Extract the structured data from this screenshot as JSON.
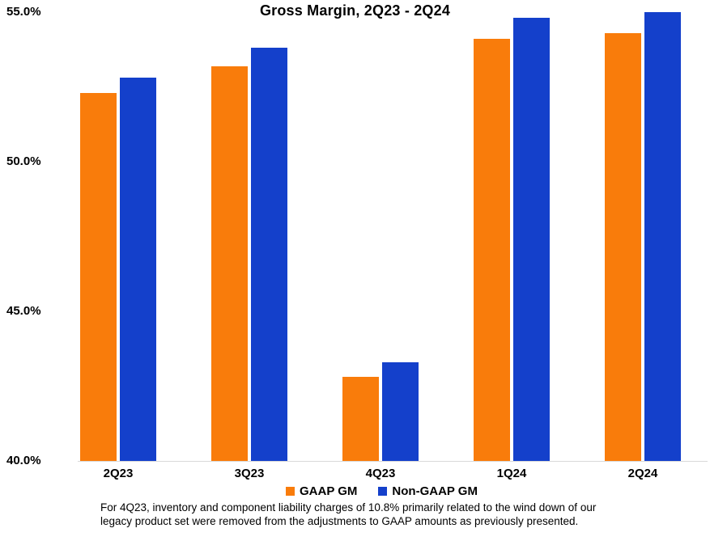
{
  "title": "Gross Margin, 2Q23 - 2Q24",
  "chart_data": {
    "type": "bar",
    "title": "Gross Margin, 2Q23 - 2Q24",
    "categories": [
      "2Q23",
      "3Q23",
      "4Q23",
      "1Q24",
      "2Q24"
    ],
    "series": [
      {
        "name": "GAAP GM",
        "color": "#F97C0B",
        "values": [
          52.3,
          53.2,
          42.8,
          54.1,
          54.3
        ]
      },
      {
        "name": "Non-GAAP GM",
        "color": "#1440CB",
        "values": [
          52.8,
          53.8,
          43.3,
          54.8,
          55.0
        ]
      }
    ],
    "xlabel": "",
    "ylabel": "",
    "ylim": [
      40.0,
      55.0
    ],
    "yticks": [
      {
        "value": 55.0,
        "label": "55.0%"
      },
      {
        "value": 50.0,
        "label": "50.0%"
      },
      {
        "value": 45.0,
        "label": "45.0%"
      },
      {
        "value": 40.0,
        "label": "40.0%"
      }
    ],
    "grid": false,
    "legend_position": "bottom"
  },
  "footnote": {
    "line1": "For 4Q23, inventory and component liability charges of 10.8% primarily related to the wind down of our",
    "line2": "legacy product set were removed from the adjustments to GAAP amounts as previously presented."
  },
  "colors": {
    "gaap_orange": "#F97C0B",
    "non_gaap_blue": "#1440CB",
    "axis_line": "#D9D9D9",
    "text": "#000000",
    "background": "#FFFFFF"
  }
}
